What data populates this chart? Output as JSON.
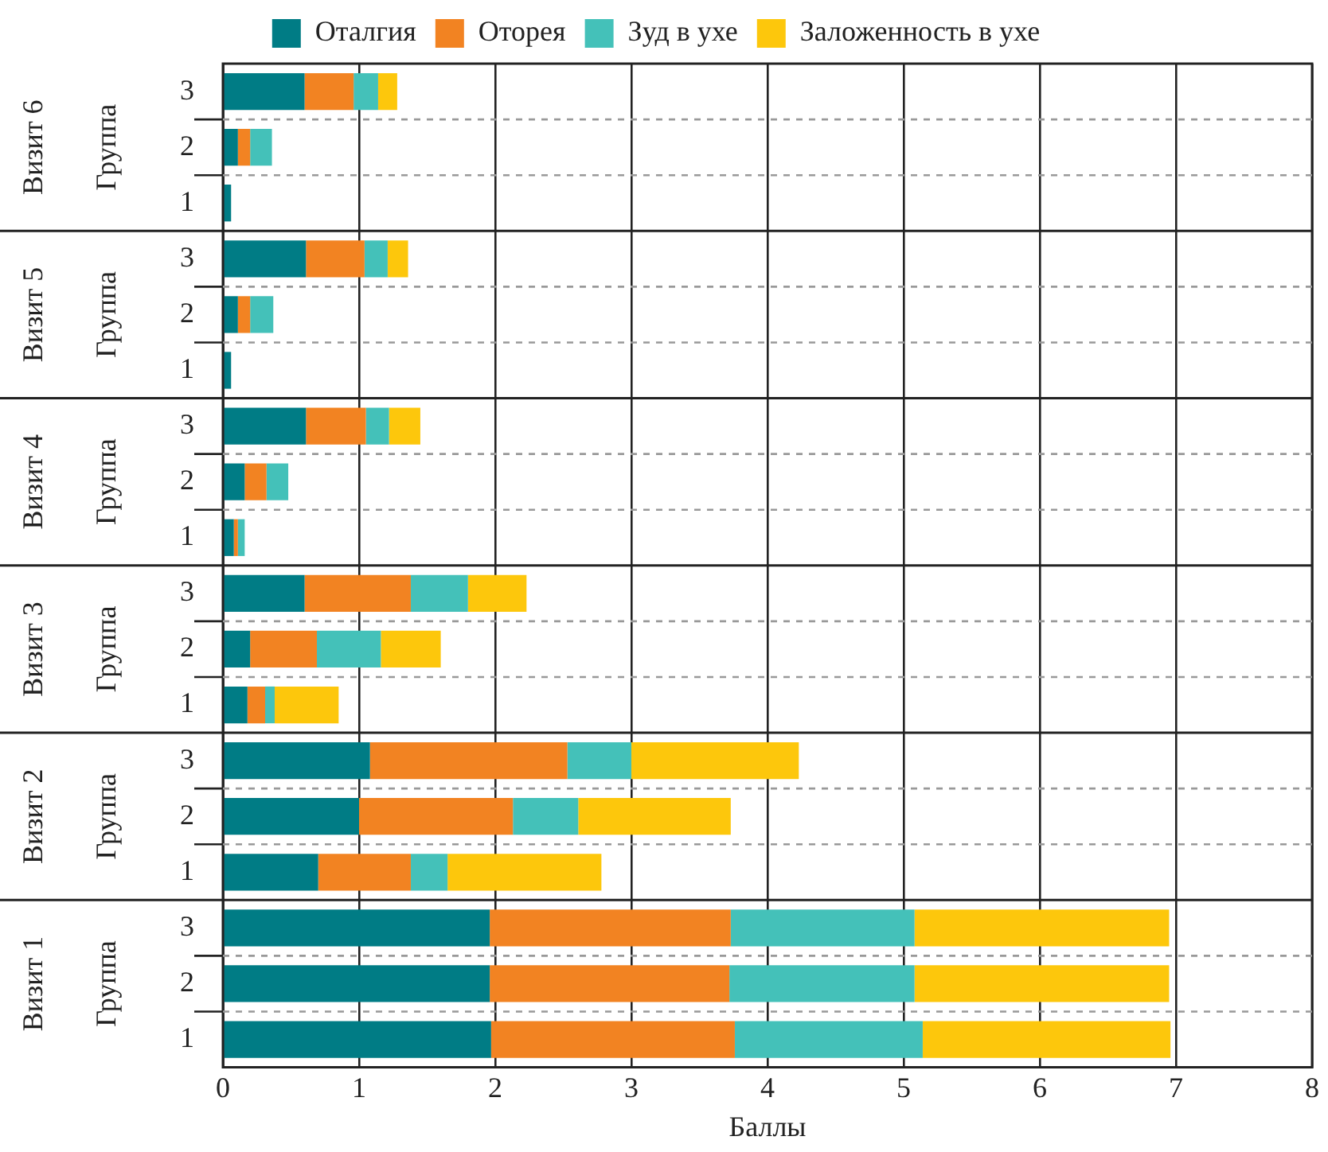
{
  "chart_data": {
    "type": "bar",
    "orientation": "horizontal",
    "stacked": true,
    "xlabel": "Баллы",
    "categories": [
      "3",
      "2",
      "1",
      "3",
      "2",
      "1",
      "3",
      "2",
      "1",
      "3",
      "2",
      "1",
      "3",
      "2",
      "1",
      "3",
      "2",
      "1"
    ],
    "annotations": [
      "Визит 6",
      "Группа",
      "Визит 5",
      "Группа",
      "Визит 4",
      "Группа",
      "Визит 3",
      "Группа",
      "Визит 2",
      "Группа",
      "Визит 1",
      "Группа"
    ],
    "series": [
      {
        "name": "Оталгия",
        "color": "#007c85",
        "values": [
          0.6,
          0.11,
          0.06,
          0.61,
          0.11,
          0.06,
          0.61,
          0.16,
          0.08,
          0.6,
          0.2,
          0.18,
          1.08,
          1.0,
          0.7,
          1.96,
          1.96,
          1.97
        ]
      },
      {
        "name": "Оторея",
        "color": "#f28322",
        "values": [
          0.36,
          0.09,
          0,
          0.43,
          0.09,
          0,
          0.44,
          0.16,
          0.03,
          0.78,
          0.49,
          0.13,
          1.45,
          1.13,
          0.68,
          1.77,
          1.76,
          1.79
        ]
      },
      {
        "name": "Зуд в ухе",
        "color": "#44c1b9",
        "values": [
          0.18,
          0.16,
          0,
          0.17,
          0.17,
          0,
          0.17,
          0.16,
          0.05,
          0.42,
          0.47,
          0.07,
          0.47,
          0.48,
          0.27,
          1.35,
          1.36,
          1.38
        ]
      },
      {
        "name": "Заложенность в ухе",
        "color": "#fdc70c",
        "values": [
          0.14,
          0,
          0,
          0.15,
          0,
          0,
          0.23,
          0,
          0,
          0.43,
          0.44,
          0.47,
          1.23,
          1.12,
          1.13,
          1.87,
          1.87,
          1.82
        ]
      }
    ],
    "xlim": [
      0,
      8
    ],
    "xticks": [
      0,
      1,
      2,
      3,
      4,
      5,
      6,
      7,
      8
    ],
    "grid": "x",
    "legend": "top"
  }
}
